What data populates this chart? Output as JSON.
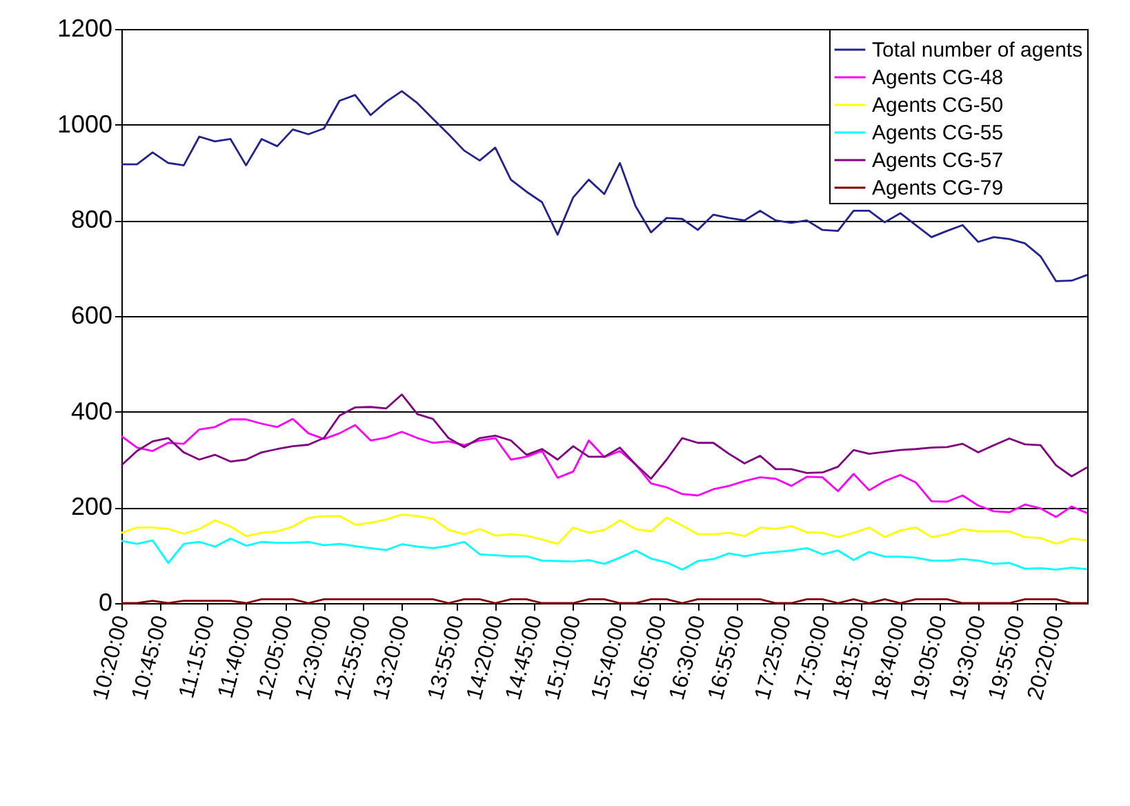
{
  "chart_data": {
    "type": "line",
    "x": [
      10.3333,
      10.5,
      10.6667,
      10.8333,
      11,
      11.1667,
      11.3333,
      11.5,
      11.6667,
      11.8333,
      12,
      12.1667,
      12.3333,
      12.5,
      12.6667,
      12.8333,
      13,
      13.1667,
      13.3333,
      13.5,
      13.6667,
      13.8333,
      14,
      14.1667,
      14.3333,
      14.5,
      14.6667,
      14.8333,
      15,
      15.1667,
      15.3333,
      15.5,
      15.6667,
      15.8333,
      16,
      16.1667,
      16.3333,
      16.5,
      16.6667,
      16.8333,
      17,
      17.1667,
      17.3333,
      17.5,
      17.6667,
      17.8333,
      18,
      18.1667,
      18.3333,
      18.5,
      18.6667,
      18.8333,
      19,
      19.1667,
      19.3333,
      19.5,
      19.6667,
      19.8333,
      20,
      20.1667,
      20.3333,
      20.5,
      20.6667
    ],
    "series": [
      {
        "name": "Total number of agents",
        "color": "#23238f",
        "values": [
          917,
          917,
          942,
          920,
          915,
          975,
          965,
          970,
          915,
          970,
          955,
          990,
          980,
          992,
          1050,
          1062,
          1020,
          1048,
          1070,
          1045,
          1012,
          980,
          946,
          925,
          952,
          885,
          860,
          838,
          770,
          848,
          885,
          855,
          920,
          830,
          775,
          805,
          803,
          780,
          812,
          805,
          800,
          820,
          800,
          795,
          800,
          780,
          778,
          820,
          820,
          796,
          815,
          790,
          765,
          778,
          790,
          755,
          765,
          761,
          752,
          725,
          673,
          674,
          686
        ]
      },
      {
        "name": "Agents CG-48",
        "color": "#ff00ff",
        "values": [
          349,
          325,
          318,
          335,
          333,
          363,
          368,
          384,
          384,
          375,
          368,
          385,
          355,
          343,
          355,
          372,
          340,
          346,
          358,
          345,
          335,
          338,
          330,
          340,
          345,
          300,
          306,
          318,
          262,
          275,
          340,
          305,
          318,
          290,
          250,
          242,
          228,
          225,
          238,
          245,
          255,
          263,
          260,
          245,
          264,
          263,
          234,
          270,
          236,
          255,
          268,
          252,
          213,
          212,
          225,
          204,
          192,
          190,
          206,
          198,
          180,
          202,
          188
        ]
      },
      {
        "name": "Agents CG-50",
        "color": "#ffff00",
        "values": [
          147,
          158,
          158,
          155,
          145,
          155,
          173,
          160,
          140,
          147,
          150,
          160,
          178,
          182,
          182,
          164,
          168,
          175,
          185,
          182,
          176,
          153,
          144,
          155,
          141,
          144,
          141,
          133,
          124,
          158,
          147,
          153,
          173,
          155,
          150,
          179,
          162,
          144,
          144,
          147,
          140,
          158,
          155,
          161,
          148,
          147,
          138,
          147,
          158,
          138,
          152,
          158,
          138,
          144,
          155,
          150,
          150,
          150,
          138,
          136,
          124,
          135,
          131
        ]
      },
      {
        "name": "Agents CG-55",
        "color": "#00ffff",
        "values": [
          130,
          124,
          131,
          84,
          124,
          128,
          118,
          135,
          120,
          128,
          126,
          126,
          128,
          121,
          124,
          119,
          115,
          111,
          123,
          118,
          115,
          120,
          128,
          102,
          100,
          98,
          98,
          89,
          88,
          87,
          90,
          82,
          95,
          110,
          93,
          85,
          70,
          88,
          92,
          104,
          98,
          104,
          107,
          110,
          115,
          102,
          110,
          90,
          107,
          97,
          97,
          95,
          89,
          89,
          92,
          89,
          82,
          84,
          72,
          73,
          70,
          74,
          71
        ]
      },
      {
        "name": "Agents CG-57",
        "color": "#800080",
        "values": [
          288,
          318,
          338,
          345,
          315,
          300,
          310,
          296,
          300,
          315,
          322,
          328,
          331,
          345,
          392,
          409,
          410,
          407,
          436,
          395,
          385,
          345,
          326,
          345,
          350,
          340,
          310,
          322,
          300,
          328,
          306,
          306,
          325,
          290,
          260,
          300,
          345,
          335,
          335,
          312,
          292,
          308,
          280,
          280,
          272,
          273,
          285,
          320,
          312,
          316,
          320,
          322,
          325,
          326,
          333,
          315,
          330,
          344,
          332,
          330,
          288,
          265,
          284
        ]
      },
      {
        "name": "Agents CG-79",
        "color": "#800000",
        "values": [
          0,
          0,
          5,
          0,
          5,
          5,
          5,
          5,
          0,
          8,
          8,
          8,
          0,
          8,
          8,
          8,
          8,
          8,
          8,
          8,
          8,
          0,
          8,
          8,
          0,
          8,
          8,
          0,
          0,
          0,
          8,
          8,
          0,
          0,
          8,
          8,
          0,
          8,
          8,
          8,
          8,
          8,
          0,
          0,
          8,
          8,
          0,
          8,
          0,
          8,
          0,
          8,
          8,
          8,
          0,
          0,
          0,
          0,
          8,
          8,
          8,
          0,
          0
        ]
      }
    ],
    "xlim": [
      10.3333,
      20.6667
    ],
    "xticks": [
      {
        "value": 10.3333,
        "label": "10:20:00"
      },
      {
        "value": 10.75,
        "label": "10:45:00"
      },
      {
        "value": 11.25,
        "label": "11:15:00"
      },
      {
        "value": 11.6667,
        "label": "11:40:00"
      },
      {
        "value": 12.0833,
        "label": "12:05:00"
      },
      {
        "value": 12.5,
        "label": "12:30:00"
      },
      {
        "value": 12.9167,
        "label": "12:55:00"
      },
      {
        "value": 13.3333,
        "label": "13:20:00"
      },
      {
        "value": 13.9167,
        "label": "13:55:00"
      },
      {
        "value": 14.3333,
        "label": "14:20:00"
      },
      {
        "value": 14.75,
        "label": "14:45:00"
      },
      {
        "value": 15.1667,
        "label": "15:10:00"
      },
      {
        "value": 15.6667,
        "label": "15:40:00"
      },
      {
        "value": 16.0833,
        "label": "16:05:00"
      },
      {
        "value": 16.5,
        "label": "16:30:00"
      },
      {
        "value": 16.9167,
        "label": "16:55:00"
      },
      {
        "value": 17.4167,
        "label": "17:25:00"
      },
      {
        "value": 17.8333,
        "label": "17:50:00"
      },
      {
        "value": 18.25,
        "label": "18:15:00"
      },
      {
        "value": 18.6667,
        "label": "18:40:00"
      },
      {
        "value": 19.0833,
        "label": "19:05:00"
      },
      {
        "value": 19.5,
        "label": "19:30:00"
      },
      {
        "value": 19.9167,
        "label": "19:55:00"
      },
      {
        "value": 20.3333,
        "label": "20:20:00"
      }
    ],
    "ylim": [
      0,
      1200
    ],
    "yticks": [
      0,
      200,
      400,
      600,
      800,
      1000,
      1200
    ],
    "grid": "y",
    "legend": "top right"
  }
}
